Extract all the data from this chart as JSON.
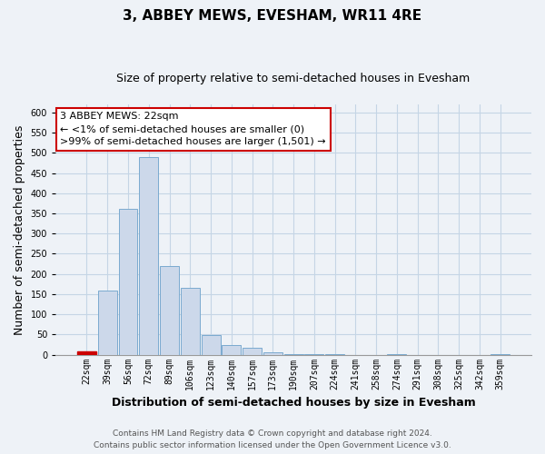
{
  "title": "3, ABBEY MEWS, EVESHAM, WR11 4RE",
  "subtitle": "Size of property relative to semi-detached houses in Evesham",
  "xlabel": "Distribution of semi-detached houses by size in Evesham",
  "ylabel": "Number of semi-detached properties",
  "bin_labels": [
    "22sqm",
    "39sqm",
    "56sqm",
    "72sqm",
    "89sqm",
    "106sqm",
    "123sqm",
    "140sqm",
    "157sqm",
    "173sqm",
    "190sqm",
    "207sqm",
    "224sqm",
    "241sqm",
    "258sqm",
    "274sqm",
    "291sqm",
    "308sqm",
    "325sqm",
    "342sqm",
    "359sqm"
  ],
  "bar_heights": [
    8,
    160,
    362,
    490,
    220,
    165,
    48,
    23,
    18,
    7,
    1,
    1,
    1,
    0,
    0,
    1,
    0,
    0,
    0,
    0,
    2
  ],
  "bar_color": "#ccd8ea",
  "bar_edge_color": "#7aaacf",
  "highlight_bar_index": 0,
  "highlight_bar_color": "#cc0000",
  "highlight_bar_edge_color": "#cc0000",
  "annotation_line1": "3 ABBEY MEWS: 22sqm",
  "annotation_line2": "← <1% of semi-detached houses are smaller (0)",
  "annotation_line3": ">99% of semi-detached houses are larger (1,501) →",
  "annotation_box_color": "#ffffff",
  "annotation_box_edge_color": "#cc0000",
  "ylim": [
    0,
    620
  ],
  "footer_line1": "Contains HM Land Registry data © Crown copyright and database right 2024.",
  "footer_line2": "Contains public sector information licensed under the Open Government Licence v3.0.",
  "background_color": "#eef2f7",
  "grid_color": "#c5d5e5",
  "title_fontsize": 11,
  "subtitle_fontsize": 9,
  "axis_label_fontsize": 9,
  "tick_fontsize": 7,
  "annotation_fontsize": 8,
  "footer_fontsize": 6.5
}
